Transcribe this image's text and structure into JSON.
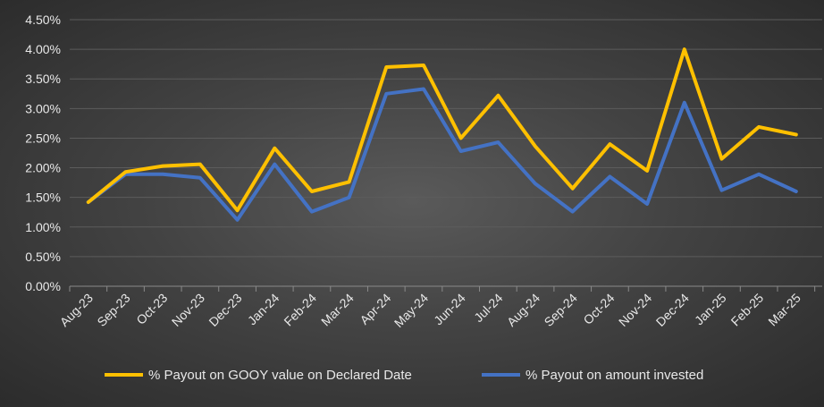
{
  "colors": {
    "series1": "#FFC000",
    "series2": "#4472C4"
  },
  "chart_data": {
    "type": "line",
    "title": "",
    "xlabel": "",
    "ylabel": "",
    "categories": [
      "Aug-23",
      "Sep-23",
      "Oct-23",
      "Nov-23",
      "Dec-23",
      "Jan-24",
      "Feb-24",
      "Mar-24",
      "Apr-24",
      "May-24",
      "Jun-24",
      "Jul-24",
      "Aug-24",
      "Sep-24",
      "Oct-24",
      "Nov-24",
      "Dec-24",
      "Jan-25",
      "Feb-25",
      "Mar-25"
    ],
    "ylim": [
      0,
      4.5
    ],
    "yticks": [
      "0.00%",
      "0.50%",
      "1.00%",
      "1.50%",
      "2.00%",
      "2.50%",
      "3.00%",
      "3.50%",
      "4.00%",
      "4.50%"
    ],
    "ytick_values": [
      0,
      0.5,
      1.0,
      1.5,
      2.0,
      2.5,
      3.0,
      3.5,
      4.0,
      4.5
    ],
    "grid": true,
    "legend_position": "bottom",
    "series": [
      {
        "name": "% Payout on GOOY value on Declared Date",
        "color": "#FFC000",
        "values": [
          1.42,
          1.93,
          2.03,
          2.06,
          1.28,
          2.33,
          1.6,
          1.76,
          3.7,
          3.73,
          2.5,
          3.22,
          2.36,
          1.65,
          2.4,
          1.95,
          4.0,
          2.15,
          2.69,
          2.56
        ]
      },
      {
        "name": "% Payout on amount invested",
        "color": "#4472C4",
        "values": [
          1.42,
          1.89,
          1.89,
          1.83,
          1.12,
          2.06,
          1.26,
          1.5,
          3.25,
          3.33,
          2.28,
          2.43,
          1.73,
          1.26,
          1.85,
          1.39,
          3.1,
          1.62,
          1.89,
          1.6
        ]
      }
    ]
  }
}
